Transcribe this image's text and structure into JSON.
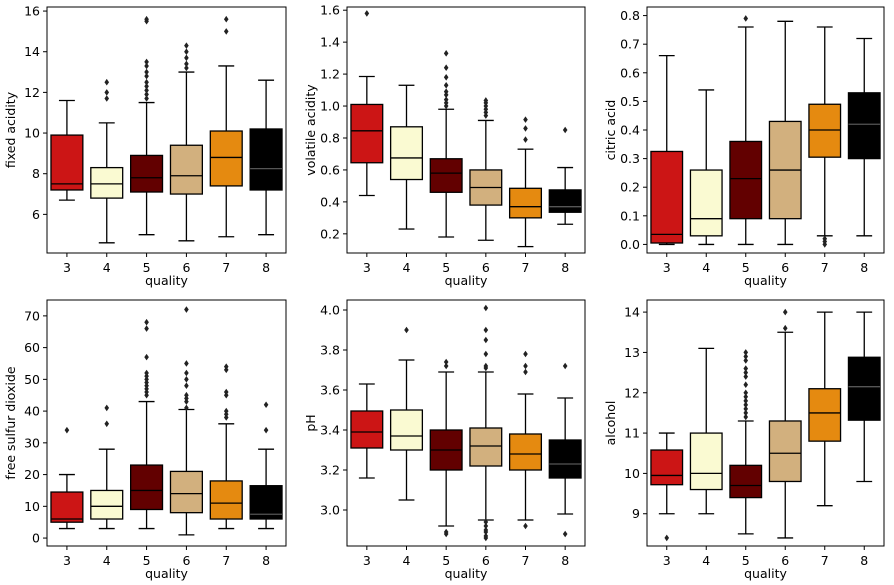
{
  "chart_data": [
    {
      "type": "box",
      "xlabel": "quality",
      "ylabel": "fixed acidity",
      "categories": [
        "3",
        "4",
        "5",
        "6",
        "7",
        "8"
      ],
      "ylim": [
        4.1,
        16.2
      ],
      "yticks": [
        6,
        8,
        10,
        12,
        14,
        16
      ],
      "yticklabels": [
        "6",
        "8",
        "10",
        "12",
        "14",
        "16"
      ],
      "boxes": [
        {
          "q1": 7.2,
          "median": 7.5,
          "q3": 9.9,
          "whislo": 6.7,
          "whishi": 11.6,
          "fliers": []
        },
        {
          "q1": 6.8,
          "median": 7.5,
          "q3": 8.3,
          "whislo": 4.6,
          "whishi": 10.5,
          "fliers": [
            11.7,
            12.0,
            12.5
          ]
        },
        {
          "q1": 7.1,
          "median": 7.8,
          "q3": 8.9,
          "whislo": 5.0,
          "whishi": 11.5,
          "fliers": [
            11.7,
            11.9,
            12.1,
            12.3,
            12.5,
            12.8,
            13.0,
            13.3,
            13.5,
            15.5,
            15.6
          ]
        },
        {
          "q1": 7.0,
          "median": 7.9,
          "q3": 9.4,
          "whislo": 4.7,
          "whishi": 13.0,
          "fliers": [
            13.2,
            13.4,
            13.7,
            14.0,
            14.3
          ]
        },
        {
          "q1": 7.4,
          "median": 8.8,
          "q3": 10.1,
          "whislo": 4.9,
          "whishi": 13.3,
          "fliers": [
            15.0,
            15.6
          ]
        },
        {
          "q1": 7.2,
          "median": 8.25,
          "q3": 10.2,
          "whislo": 5.0,
          "whishi": 12.6,
          "fliers": []
        }
      ]
    },
    {
      "type": "box",
      "xlabel": "quality",
      "ylabel": "volatile acidity",
      "categories": [
        "3",
        "4",
        "5",
        "6",
        "7",
        "8"
      ],
      "ylim": [
        0.08,
        1.62
      ],
      "yticks": [
        0.2,
        0.4,
        0.6,
        0.8,
        1.0,
        1.2,
        1.4,
        1.6
      ],
      "yticklabels": [
        "0.2",
        "0.4",
        "0.6",
        "0.8",
        "1.0",
        "1.2",
        "1.4",
        "1.6"
      ],
      "boxes": [
        {
          "q1": 0.645,
          "median": 0.845,
          "q3": 1.01,
          "whislo": 0.44,
          "whishi": 1.185,
          "fliers": [
            1.58
          ]
        },
        {
          "q1": 0.54,
          "median": 0.675,
          "q3": 0.87,
          "whislo": 0.23,
          "whishi": 1.13,
          "fliers": []
        },
        {
          "q1": 0.46,
          "median": 0.58,
          "q3": 0.67,
          "whislo": 0.18,
          "whishi": 0.98,
          "fliers": [
            1.0,
            1.02,
            1.04,
            1.07,
            1.09,
            1.13,
            1.18,
            1.24,
            1.33
          ]
        },
        {
          "q1": 0.38,
          "median": 0.49,
          "q3": 0.6,
          "whislo": 0.16,
          "whishi": 0.91,
          "fliers": [
            0.94,
            0.96,
            0.98,
            1.0,
            1.02,
            1.035
          ]
        },
        {
          "q1": 0.3,
          "median": 0.37,
          "q3": 0.485,
          "whislo": 0.12,
          "whishi": 0.73,
          "fliers": [
            0.79,
            0.86,
            0.915
          ]
        },
        {
          "q1": 0.335,
          "median": 0.37,
          "q3": 0.475,
          "whislo": 0.26,
          "whishi": 0.615,
          "fliers": [
            0.85
          ]
        }
      ]
    },
    {
      "type": "box",
      "xlabel": "quality",
      "ylabel": "citric acid",
      "categories": [
        "3",
        "4",
        "5",
        "6",
        "7",
        "8"
      ],
      "ylim": [
        -0.03,
        0.83
      ],
      "yticks": [
        0.0,
        0.1,
        0.2,
        0.3,
        0.4,
        0.5,
        0.6,
        0.7,
        0.8
      ],
      "yticklabels": [
        "0.0",
        "0.1",
        "0.2",
        "0.3",
        "0.4",
        "0.5",
        "0.6",
        "0.7",
        "0.8"
      ],
      "boxes": [
        {
          "q1": 0.005,
          "median": 0.035,
          "q3": 0.325,
          "whislo": 0.0,
          "whishi": 0.66,
          "fliers": []
        },
        {
          "q1": 0.03,
          "median": 0.09,
          "q3": 0.26,
          "whislo": 0.0,
          "whishi": 0.54,
          "fliers": []
        },
        {
          "q1": 0.09,
          "median": 0.23,
          "q3": 0.36,
          "whislo": 0.0,
          "whishi": 0.76,
          "fliers": [
            0.79
          ]
        },
        {
          "q1": 0.09,
          "median": 0.26,
          "q3": 0.43,
          "whislo": 0.0,
          "whishi": 0.78,
          "fliers": []
        },
        {
          "q1": 0.305,
          "median": 0.4,
          "q3": 0.49,
          "whislo": 0.03,
          "whishi": 0.76,
          "fliers": [
            0.0,
            0.01,
            0.02
          ]
        },
        {
          "q1": 0.3,
          "median": 0.42,
          "q3": 0.53,
          "whislo": 0.03,
          "whishi": 0.72,
          "fliers": []
        }
      ]
    },
    {
      "type": "box",
      "xlabel": "quality",
      "ylabel": "free sulfur dioxide",
      "categories": [
        "3",
        "4",
        "5",
        "6",
        "7",
        "8"
      ],
      "ylim": [
        -2.5,
        75
      ],
      "yticks": [
        0,
        10,
        20,
        30,
        40,
        50,
        60,
        70
      ],
      "yticklabels": [
        "0",
        "10",
        "20",
        "30",
        "40",
        "50",
        "60",
        "70"
      ],
      "boxes": [
        {
          "q1": 5.0,
          "median": 6.0,
          "q3": 14.5,
          "whislo": 3.0,
          "whishi": 20.0,
          "fliers": [
            34.0
          ]
        },
        {
          "q1": 6.0,
          "median": 10.0,
          "q3": 15.0,
          "whislo": 3.0,
          "whishi": 28.0,
          "fliers": [
            36.0,
            41.0
          ]
        },
        {
          "q1": 9.0,
          "median": 15.0,
          "q3": 23.0,
          "whislo": 3.0,
          "whishi": 43.0,
          "fliers": [
            45,
            46,
            47,
            48,
            49,
            50,
            51,
            52,
            57,
            66,
            68
          ]
        },
        {
          "q1": 8.0,
          "median": 14.0,
          "q3": 21.0,
          "whislo": 1.0,
          "whishi": 40.5,
          "fliers": [
            41,
            43,
            44,
            45,
            48,
            50,
            52,
            55,
            72
          ]
        },
        {
          "q1": 6.0,
          "median": 11.0,
          "q3": 18.0,
          "whislo": 3.0,
          "whishi": 36.0,
          "fliers": [
            38,
            39,
            40,
            45,
            46,
            53,
            54
          ]
        },
        {
          "q1": 6.0,
          "median": 7.5,
          "q3": 16.5,
          "whislo": 3.0,
          "whishi": 28.0,
          "fliers": [
            34,
            42
          ]
        }
      ]
    },
    {
      "type": "box",
      "xlabel": "quality",
      "ylabel": "pH",
      "categories": [
        "3",
        "4",
        "5",
        "6",
        "7",
        "8"
      ],
      "ylim": [
        2.82,
        4.05
      ],
      "yticks": [
        3.0,
        3.2,
        3.4,
        3.6,
        3.8,
        4.0
      ],
      "yticklabels": [
        "3.0",
        "3.2",
        "3.4",
        "3.6",
        "3.8",
        "4.0"
      ],
      "boxes": [
        {
          "q1": 3.31,
          "median": 3.39,
          "q3": 3.495,
          "whislo": 3.16,
          "whishi": 3.63,
          "fliers": []
        },
        {
          "q1": 3.3,
          "median": 3.37,
          "q3": 3.5,
          "whislo": 3.05,
          "whishi": 3.75,
          "fliers": [
            3.9
          ]
        },
        {
          "q1": 3.2,
          "median": 3.3,
          "q3": 3.4,
          "whislo": 2.92,
          "whishi": 3.69,
          "fliers": [
            2.88,
            2.89,
            3.72,
            3.74
          ]
        },
        {
          "q1": 3.22,
          "median": 3.32,
          "q3": 3.41,
          "whislo": 2.95,
          "whishi": 3.69,
          "fliers": [
            2.86,
            2.87,
            2.89,
            2.9,
            2.92,
            2.94,
            3.71,
            3.72,
            3.78,
            3.85,
            3.9,
            4.01
          ]
        },
        {
          "q1": 3.2,
          "median": 3.28,
          "q3": 3.38,
          "whislo": 2.95,
          "whishi": 3.58,
          "fliers": [
            2.92,
            3.69,
            3.72,
            3.78
          ]
        },
        {
          "q1": 3.16,
          "median": 3.23,
          "q3": 3.35,
          "whislo": 2.98,
          "whishi": 3.56,
          "fliers": [
            2.88,
            3.72
          ]
        }
      ]
    },
    {
      "type": "box",
      "xlabel": "quality",
      "ylabel": "alcohol",
      "categories": [
        "3",
        "4",
        "5",
        "6",
        "7",
        "8"
      ],
      "ylim": [
        8.2,
        14.3
      ],
      "yticks": [
        9,
        10,
        11,
        12,
        13,
        14
      ],
      "yticklabels": [
        "9",
        "10",
        "11",
        "12",
        "13",
        "14"
      ],
      "boxes": [
        {
          "q1": 9.72,
          "median": 9.95,
          "q3": 10.58,
          "whislo": 9.0,
          "whishi": 11.0,
          "fliers": [
            8.4
          ]
        },
        {
          "q1": 9.6,
          "median": 10.0,
          "q3": 11.0,
          "whislo": 9.0,
          "whishi": 13.1,
          "fliers": []
        },
        {
          "q1": 9.4,
          "median": 9.7,
          "q3": 10.2,
          "whislo": 8.5,
          "whishi": 11.3,
          "fliers": [
            11.4,
            11.5,
            11.6,
            11.7,
            11.8,
            11.9,
            12.0,
            12.2,
            12.4,
            12.5,
            12.6,
            12.8,
            12.9,
            13.0
          ]
        },
        {
          "q1": 9.8,
          "median": 10.5,
          "q3": 11.3,
          "whislo": 8.4,
          "whishi": 13.5,
          "fliers": [
            13.6,
            14.0
          ]
        },
        {
          "q1": 10.8,
          "median": 11.5,
          "q3": 12.1,
          "whislo": 9.2,
          "whishi": 14.0,
          "fliers": []
        },
        {
          "q1": 11.32,
          "median": 12.15,
          "q3": 12.88,
          "whislo": 9.8,
          "whishi": 14.0,
          "fliers": []
        }
      ]
    }
  ],
  "palette": [
    "#cc1515",
    "#fafad2",
    "#620000",
    "#d2b07e",
    "#e58a10",
    "#000000"
  ]
}
